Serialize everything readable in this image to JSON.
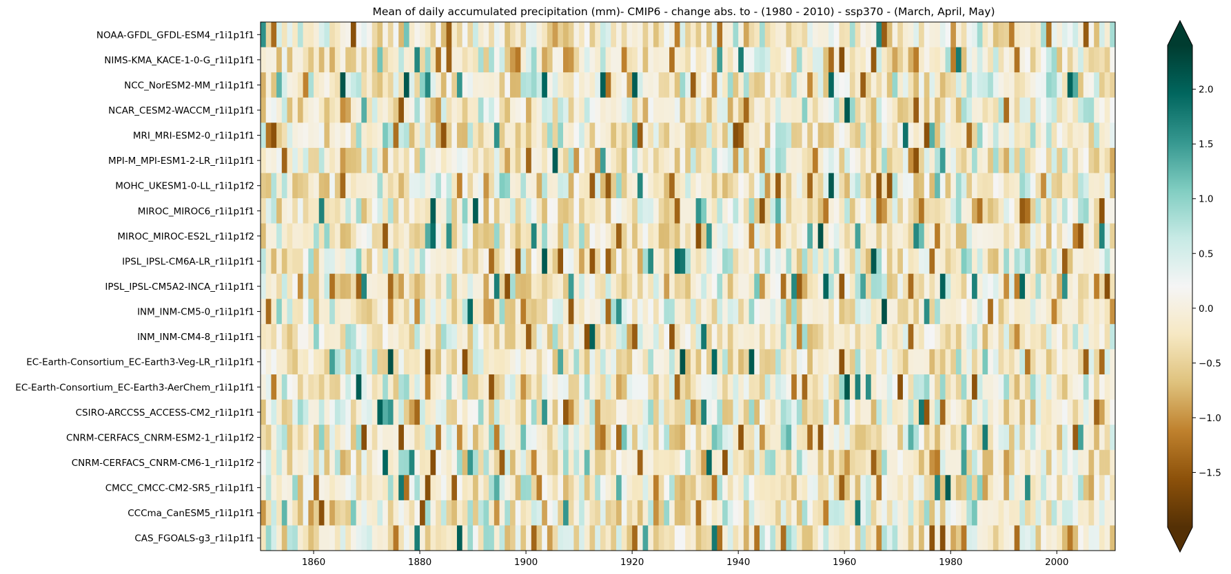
{
  "chart_data": {
    "type": "heatmap",
    "title": "Mean of daily accumulated precipitation (mm)- CMIP6 - change abs. to - (1980 - 2010) - ssp370  - (March, April, May)",
    "xlabel": "",
    "ylabel": "",
    "x_range": [
      1850,
      2011
    ],
    "x_ticks": [
      1860,
      1880,
      1900,
      1920,
      1940,
      1960,
      1980,
      2000
    ],
    "x_tick_labels": [
      "1860",
      "1880",
      "1900",
      "1920",
      "1940",
      "1960",
      "1980",
      "2000"
    ],
    "rows": [
      "NOAA-GFDL_GFDL-ESM4_r1i1p1f1",
      "NIMS-KMA_KACE-1-0-G_r1i1p1f1",
      "NCC_NorESM2-MM_r1i1p1f1",
      "NCAR_CESM2-WACCM_r1i1p1f1",
      "MRI_MRI-ESM2-0_r1i1p1f1",
      "MPI-M_MPI-ESM1-2-LR_r1i1p1f1",
      "MOHC_UKESM1-0-LL_r1i1p1f2",
      "MIROC_MIROC6_r1i1p1f1",
      "MIROC_MIROC-ES2L_r1i1p1f2",
      "IPSL_IPSL-CM6A-LR_r1i1p1f1",
      "IPSL_IPSL-CM5A2-INCA_r1i1p1f1",
      "INM_INM-CM5-0_r1i1p1f1",
      "INM_INM-CM4-8_r1i1p1f1",
      "EC-Earth-Consortium_EC-Earth3-Veg-LR_r1i1p1f1",
      "EC-Earth-Consortium_EC-Earth3-AerChem_r1i1p1f1",
      "CSIRO-ARCCSS_ACCESS-CM2_r1i1p1f1",
      "CNRM-CERFACS_CNRM-ESM2-1_r1i1p1f2",
      "CNRM-CERFACS_CNRM-CM6-1_r1i1p1f2",
      "CMCC_CMCC-CM2-SR5_r1i1p1f1",
      "CCCma_CanESM5_r1i1p1f1",
      "CAS_FGOALS-g3_r1i1p1f1"
    ],
    "colormap": "BrBG",
    "colormap_stops": [
      "#543005",
      "#8c510a",
      "#bf812d",
      "#dfc27d",
      "#f6e8c3",
      "#f5f5f5",
      "#c7eae5",
      "#80cdc1",
      "#35978f",
      "#01665e",
      "#003c30"
    ],
    "color_range": [
      -2.0,
      2.4
    ],
    "colorbar": {
      "ticks": [
        2.0,
        1.5,
        1.0,
        0.5,
        0.0,
        -0.5,
        -1.0,
        -1.5
      ],
      "tick_labels": [
        "2.0",
        "1.5",
        "1.0",
        "0.5",
        "0.0",
        "−0.5",
        "−1.0",
        "−1.5"
      ],
      "extend": "both"
    },
    "grid": false,
    "cells": "161 annual columns (1850–2010) per model row; values range roughly from −2.0 to 2.4 mm"
  }
}
